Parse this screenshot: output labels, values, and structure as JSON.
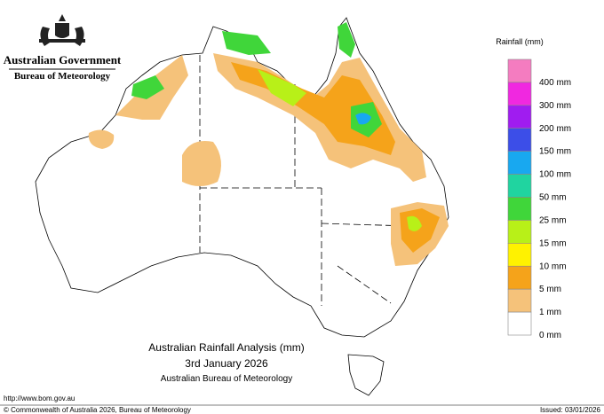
{
  "header": {
    "title": "Australian Government",
    "subtitle": "Bureau of Meteorology"
  },
  "legend": {
    "title": "Rainfall (mm)",
    "items": [
      {
        "label": null,
        "color": "#f47cc0"
      },
      {
        "label": "400 mm",
        "color": "#f028e0"
      },
      {
        "label": "300 mm",
        "color": "#a01cf0"
      },
      {
        "label": "200 mm",
        "color": "#3c4ee8"
      },
      {
        "label": "150 mm",
        "color": "#18a8f0"
      },
      {
        "label": "100 mm",
        "color": "#20d4a0"
      },
      {
        "label": "50 mm",
        "color": "#40d63a"
      },
      {
        "label": "25 mm",
        "color": "#b8f018"
      },
      {
        "label": "15 mm",
        "color": "#fff200"
      },
      {
        "label": "10 mm",
        "color": "#f5a31a"
      },
      {
        "label": "5 mm",
        "color": "#f5c27a"
      },
      {
        "label": "1 mm",
        "color": "#ffffff"
      }
    ],
    "bottom_label": "0 mm"
  },
  "map_title": {
    "line1": "Australian Rainfall Analysis (mm)",
    "line2": "3rd January 2026",
    "line3": "Australian Bureau of Meteorology"
  },
  "footer": {
    "url": "http://www.bom.gov.au",
    "copyright": "© Commonwealth of Australia 2026, Bureau of Meteorology",
    "issued": "Issued: 03/01/2026"
  }
}
